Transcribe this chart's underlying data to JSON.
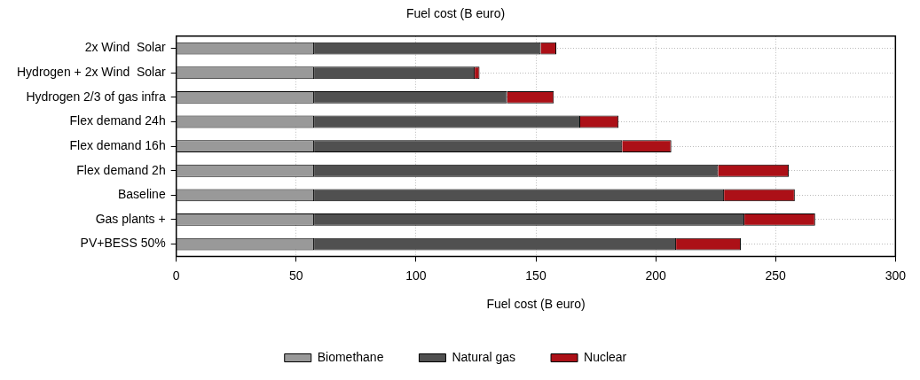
{
  "chart_data": {
    "type": "bar",
    "orientation": "horizontal",
    "stacked": true,
    "title": "Fuel cost (B euro)",
    "xlabel": "Fuel cost (B euro)",
    "categories": [
      "2x Wind  Solar",
      "Hydrogen + 2x Wind  Solar",
      "Hydrogen 2/3 of gas infra",
      "Flex demand 24h",
      "Flex demand 16h",
      "Flex demand 2h",
      "Baseline",
      "Gas plants +",
      "PV+BESS 50%"
    ],
    "series": [
      {
        "name": "Biomethane",
        "color": "#999999",
        "values": [
          57.5,
          57.5,
          57.5,
          57.5,
          57.5,
          57.5,
          57.5,
          57.5,
          57.5
        ]
      },
      {
        "name": "Natural gas",
        "color": "#505050",
        "values": [
          94.5,
          67,
          80.5,
          111,
          128.5,
          168.5,
          171,
          179.5,
          151
        ]
      },
      {
        "name": "Nuclear",
        "color": "#ac1017",
        "values": [
          6.5,
          2,
          19.5,
          16,
          20.5,
          29.5,
          29.5,
          29.5,
          27
        ]
      }
    ],
    "xlim": [
      0,
      300
    ],
    "xticks": [
      0,
      50,
      100,
      150,
      200,
      250,
      300
    ],
    "grid": true,
    "legend": "bottom"
  }
}
